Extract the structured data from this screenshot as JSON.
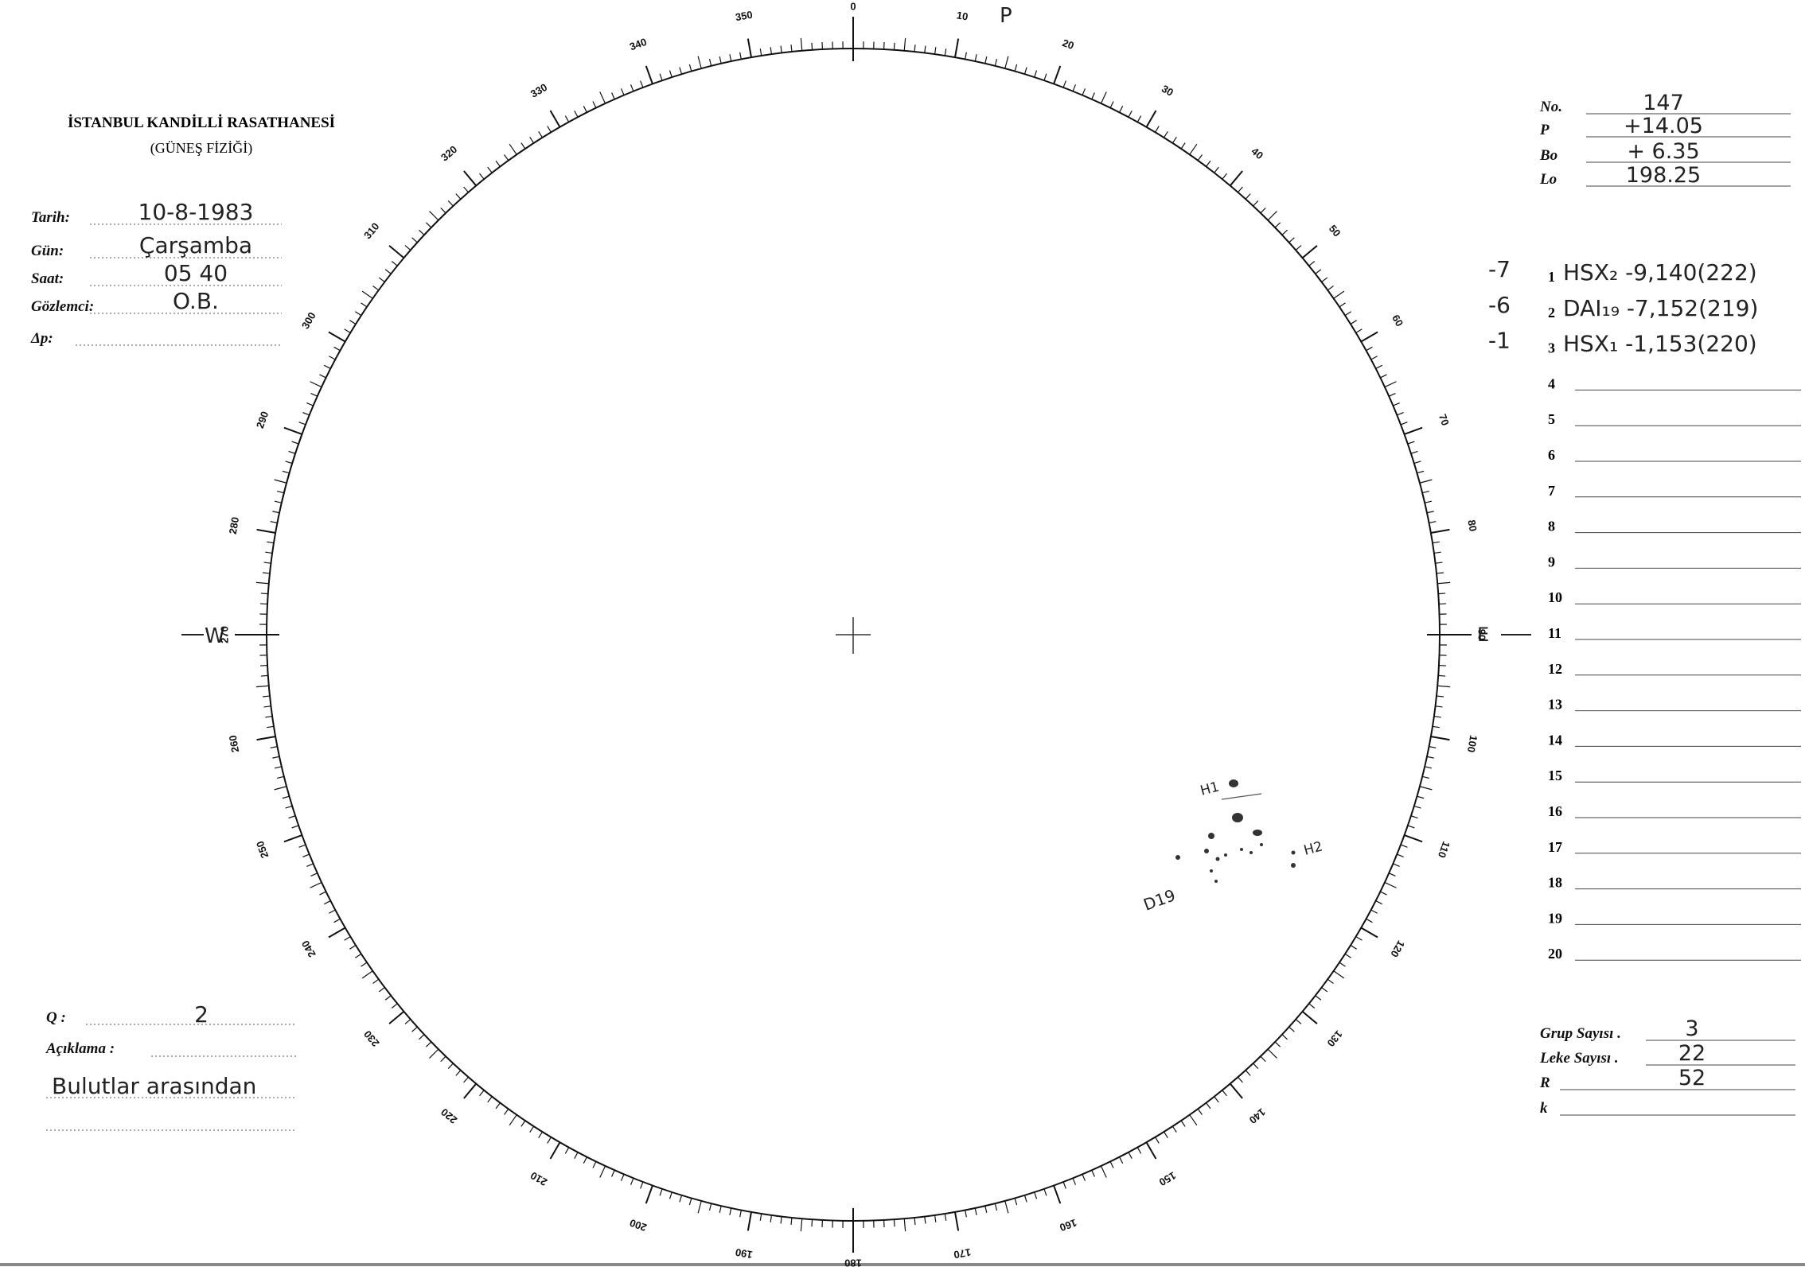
{
  "header": {
    "institution": "İSTANBUL KANDİLLİ RASATHANESİ",
    "department": "(GÜNEŞ FİZİĞİ)"
  },
  "observation": [
    {
      "label": "Tarih:",
      "value": "10-8-1983"
    },
    {
      "label": "Gün:",
      "value": "Çarşamba"
    },
    {
      "label": "Saat:",
      "value": "05 40"
    },
    {
      "label": "Gözlemci:",
      "value": "O.B."
    },
    {
      "label": "Δp:"
    }
  ],
  "parameters": [
    {
      "label": "No.",
      "value": "147"
    },
    {
      "label": "P",
      "value": "+14.05"
    },
    {
      "label": "Bo",
      "value": "+ 6.35"
    },
    {
      "label": "Lo",
      "value": "198.25"
    }
  ],
  "groups": [
    {
      "number": "1",
      "note": "-7",
      "entry": "HSX₂ -9,140(222)"
    },
    {
      "number": "2",
      "note": "-6",
      "entry": "DAI₁₉ -7,152(219)"
    },
    {
      "number": "3",
      "note": "-1",
      "entry": "HSX₁ -1,153(220)"
    },
    {
      "number": "4"
    },
    {
      "number": "5"
    },
    {
      "number": "6"
    },
    {
      "number": "7"
    },
    {
      "number": "8"
    },
    {
      "number": "9"
    },
    {
      "number": "10"
    },
    {
      "number": "11"
    },
    {
      "number": "12"
    },
    {
      "number": "13"
    },
    {
      "number": "14"
    },
    {
      "number": "15"
    },
    {
      "number": "16"
    },
    {
      "number": "17"
    },
    {
      "number": "18"
    },
    {
      "number": "19"
    },
    {
      "number": "20"
    }
  ],
  "quality": {
    "label": "Q :",
    "value": "2"
  },
  "remarks": {
    "label": "Açıklama :",
    "value": "Bulutlar arasından"
  },
  "counts": [
    {
      "label": "Grup Sayısı .",
      "value": "3"
    },
    {
      "label": "Leke Sayısı .",
      "value": "22"
    },
    {
      "label": "R",
      "value": "52"
    },
    {
      "label": "k"
    }
  ],
  "disk": {
    "north": "P",
    "west": "W",
    "east": "E",
    "dial_labels": [
      "0",
      "10",
      "20",
      "30",
      "40",
      "50",
      "60",
      "70",
      "80",
      "90",
      "100",
      "110",
      "120",
      "130",
      "140",
      "150",
      "160",
      "170",
      "180",
      "190",
      "200",
      "210",
      "220",
      "230",
      "240",
      "250",
      "260",
      "270",
      "280",
      "290",
      "300",
      "310",
      "320",
      "330",
      "340",
      "350"
    ],
    "spot_labels": [
      "H1",
      "D19",
      "H2"
    ]
  }
}
